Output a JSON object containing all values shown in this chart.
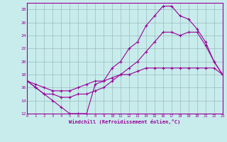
{
  "xlabel": "Windchill (Refroidissement éolien,°C)",
  "bg_color": "#c8ecec",
  "line_color": "#990099",
  "grid_color": "#99bbbb",
  "x_hours": [
    0,
    1,
    2,
    3,
    4,
    5,
    6,
    7,
    8,
    9,
    10,
    11,
    12,
    13,
    14,
    15,
    16,
    17,
    18,
    19,
    20,
    21,
    22,
    23
  ],
  "line1": [
    17,
    16,
    15,
    14,
    13,
    12,
    12,
    12,
    16.5,
    17,
    19,
    20,
    22,
    23,
    25.5,
    27,
    28.5,
    28.5,
    27,
    26.5,
    25,
    23,
    20,
    18
  ],
  "line2": [
    17,
    16,
    15,
    15,
    14.5,
    14.5,
    15,
    15,
    15.5,
    16,
    17,
    18,
    19,
    20,
    21.5,
    23,
    24.5,
    24.5,
    24,
    24.5,
    24.5,
    22.5,
    20,
    18
  ],
  "line3": [
    17,
    16.5,
    16,
    15.5,
    15.5,
    15.5,
    16,
    16.5,
    17,
    17,
    17.5,
    18,
    18,
    18.5,
    19,
    19,
    19,
    19,
    19,
    19,
    19,
    19,
    19,
    18
  ],
  "ylim": [
    12,
    29
  ],
  "xlim": [
    0,
    23
  ],
  "yticks": [
    12,
    14,
    16,
    18,
    20,
    22,
    24,
    26,
    28
  ],
  "xticks": [
    0,
    1,
    2,
    3,
    4,
    5,
    6,
    7,
    8,
    9,
    10,
    11,
    12,
    13,
    14,
    15,
    16,
    17,
    18,
    19,
    20,
    21,
    22,
    23
  ]
}
